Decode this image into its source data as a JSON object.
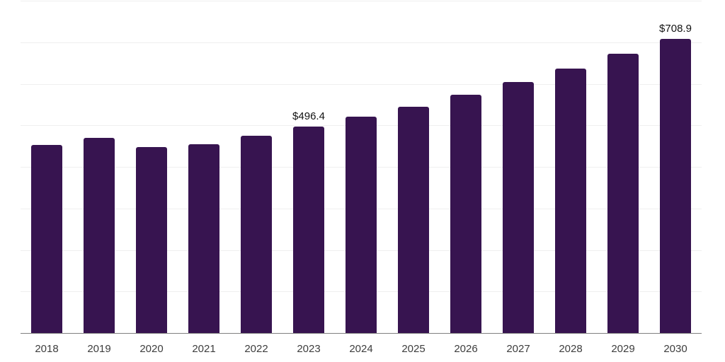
{
  "chart_data": {
    "type": "bar",
    "title": "",
    "xlabel": "",
    "ylabel": "",
    "categories": [
      "2018",
      "2019",
      "2020",
      "2021",
      "2022",
      "2023",
      "2024",
      "2025",
      "2026",
      "2027",
      "2028",
      "2029",
      "2030"
    ],
    "values": [
      452,
      470,
      448,
      454,
      475,
      496.4,
      521,
      545,
      574,
      604,
      636,
      672,
      708.9
    ],
    "data_labels": [
      "",
      "",
      "",
      "",
      "",
      "$496.4",
      "",
      "",
      "",
      "",
      "",
      "",
      "$708.9"
    ],
    "ylim": [
      0,
      800
    ],
    "gridline_step": 100,
    "grid": "horizontal",
    "legend": "none",
    "value_prefix": "$",
    "colors": {
      "bar": "#371450",
      "gridline": "#efefef",
      "axis_line": "#808080",
      "data_label_text": "#121212",
      "axis_label_text": "#3d3d3d",
      "background": "#ffffff"
    }
  }
}
